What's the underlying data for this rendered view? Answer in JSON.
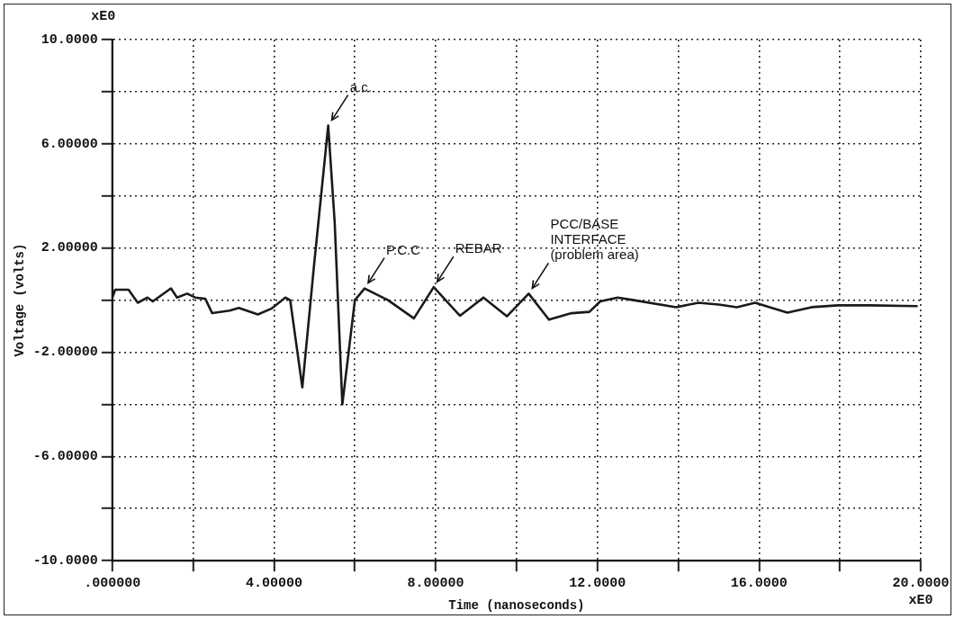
{
  "chart_data": {
    "type": "line",
    "xlabel": "Time (nanoseconds)",
    "ylabel": "Voltage (volts)",
    "xlim": [
      0,
      20
    ],
    "ylim": [
      -10,
      10
    ],
    "xticks": [
      {
        "value": 0,
        "label": ".000000"
      },
      {
        "value": 2,
        "label": null
      },
      {
        "value": 4,
        "label": "4.00000"
      },
      {
        "value": 6,
        "label": null
      },
      {
        "value": 8,
        "label": "8.00000"
      },
      {
        "value": 10,
        "label": null
      },
      {
        "value": 12,
        "label": "12.0000"
      },
      {
        "value": 14,
        "label": null
      },
      {
        "value": 16,
        "label": "16.0000"
      },
      {
        "value": 18,
        "label": null
      },
      {
        "value": 20,
        "label": "20.0000"
      }
    ],
    "yticks": [
      {
        "value": -10,
        "label": "-10.0000"
      },
      {
        "value": -8,
        "label": null
      },
      {
        "value": -6,
        "label": "-6.00000"
      },
      {
        "value": -4,
        "label": null
      },
      {
        "value": -2,
        "label": "-2.00000"
      },
      {
        "value": 0,
        "label": null
      },
      {
        "value": 2,
        "label": "2.00000"
      },
      {
        "value": 4,
        "label": null
      },
      {
        "value": 6,
        "label": "6.00000"
      },
      {
        "value": 8,
        "label": null
      },
      {
        "value": 10,
        "label": "10.0000"
      }
    ],
    "grid": true,
    "legend": false,
    "marker": "none",
    "line_style": "solid",
    "series": [
      {
        "color": "#1a1a1a",
        "x": [
          0,
          0.07,
          0.4,
          0.63,
          0.87,
          1.0,
          1.45,
          1.6,
          1.85,
          2.05,
          2.3,
          2.47,
          2.9,
          3.13,
          3.6,
          3.93,
          4.28,
          4.4,
          4.7,
          5.0,
          5.34,
          5.5,
          5.69,
          6.0,
          6.24,
          6.82,
          7.46,
          7.95,
          8.6,
          9.18,
          9.76,
          10.3,
          10.8,
          11.36,
          11.8,
          12.07,
          12.5,
          12.9,
          13.95,
          14.5,
          15.0,
          15.45,
          15.9,
          16.7,
          17.3,
          17.95,
          18.75,
          19.9
        ],
        "values": [
          0.1,
          0.4,
          0.4,
          -0.1,
          0.1,
          -0.05,
          0.45,
          0.1,
          0.25,
          0.1,
          0.05,
          -0.5,
          -0.4,
          -0.3,
          -0.55,
          -0.33,
          0.1,
          0,
          -3.35,
          1.5,
          6.7,
          3.0,
          -4.0,
          0,
          0.45,
          0,
          -0.7,
          0.5,
          -0.6,
          0.1,
          -0.62,
          0.25,
          -0.75,
          -0.5,
          -0.45,
          -0.05,
          0.1,
          0,
          -0.27,
          -0.1,
          -0.17,
          -0.27,
          -0.1,
          -0.48,
          -0.27,
          -0.2,
          -0.2,
          -0.23
        ]
      }
    ],
    "annotations": [
      {
        "text": "a.c.",
        "x": 5.34,
        "y": 6.7
      },
      {
        "text": "P.C.C",
        "x": 6.24,
        "y": 0.45
      },
      {
        "text": "REBAR",
        "x": 7.95,
        "y": 0.5
      },
      {
        "text": "PCC/BASE INTERFACE (problem area)",
        "x": 10.3,
        "y": 0.25
      },
      "xE0",
      "xE0"
    ]
  }
}
